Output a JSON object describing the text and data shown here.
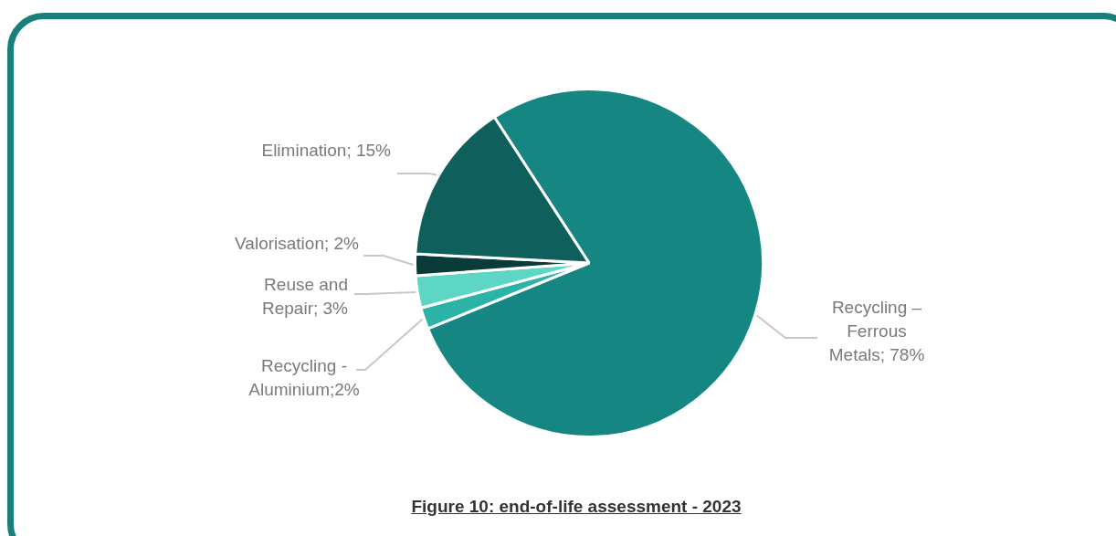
{
  "chart_data": {
    "type": "pie",
    "title": "Figure 10: end-of-life assessment - 2023",
    "categories": [
      "Recycling – Ferrous Metals",
      "Recycling - Aluminium",
      "Reuse and Repair",
      "Valorisation",
      "Elimination"
    ],
    "values": [
      78,
      2,
      3,
      2,
      15
    ],
    "colors": [
      "#168682",
      "#2ab3a6",
      "#5dd6c6",
      "#0b3b38",
      "#0f605d"
    ],
    "value_labels": [
      "; 78%",
      ";2%",
      "; 3%",
      "; 2%",
      "; 15%"
    ]
  }
}
